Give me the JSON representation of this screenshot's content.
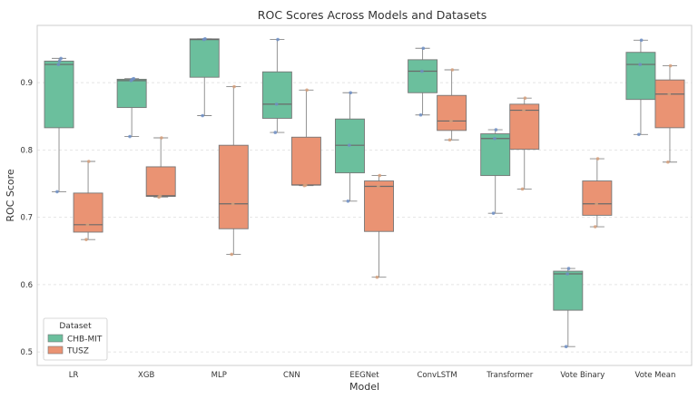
{
  "chart_data": {
    "type": "box",
    "title": "ROC Scores Across Models and Datasets",
    "xlabel": "Model",
    "ylabel": "ROC Score",
    "ylim": [
      0.48,
      0.985
    ],
    "yticks": [
      0.5,
      0.6,
      0.7,
      0.8,
      0.9
    ],
    "grid": "horizontal dashed",
    "categories": [
      "LR",
      "XGB",
      "MLP",
      "CNN",
      "EEGNet",
      "ConvLSTM",
      "Transformer",
      "Vote Binary",
      "Vote Mean"
    ],
    "legend": {
      "title": "Dataset",
      "placement": "bottom-left"
    },
    "series": [
      {
        "name": "CHB-MIT",
        "color": "#6bbf9d",
        "point_color": "#6f8fc6",
        "boxes": [
          {
            "whislo": 0.738,
            "q1": 0.833,
            "med": 0.927,
            "q3": 0.932,
            "whishi": 0.936,
            "points": [
              0.738,
              0.927,
              0.932,
              0.936
            ]
          },
          {
            "whislo": 0.82,
            "q1": 0.863,
            "med": 0.903,
            "q3": 0.905,
            "whishi": 0.906,
            "points": [
              0.82,
              0.903,
              0.905,
              0.906
            ]
          },
          {
            "whislo": 0.851,
            "q1": 0.908,
            "med": 0.964,
            "q3": 0.965,
            "whishi": 0.965,
            "points": [
              0.851,
              0.964,
              0.965
            ]
          },
          {
            "whislo": 0.826,
            "q1": 0.847,
            "med": 0.868,
            "q3": 0.916,
            "whishi": 0.964,
            "points": [
              0.826,
              0.868,
              0.964
            ]
          },
          {
            "whislo": 0.724,
            "q1": 0.766,
            "med": 0.807,
            "q3": 0.846,
            "whishi": 0.885,
            "points": [
              0.724,
              0.807,
              0.885
            ]
          },
          {
            "whislo": 0.852,
            "q1": 0.885,
            "med": 0.917,
            "q3": 0.934,
            "whishi": 0.951,
            "points": [
              0.852,
              0.917,
              0.951
            ]
          },
          {
            "whislo": 0.706,
            "q1": 0.762,
            "med": 0.817,
            "q3": 0.824,
            "whishi": 0.83,
            "points": [
              0.706,
              0.817,
              0.83
            ]
          },
          {
            "whislo": 0.508,
            "q1": 0.562,
            "med": 0.616,
            "q3": 0.62,
            "whishi": 0.624,
            "points": [
              0.508,
              0.616,
              0.624
            ]
          },
          {
            "whislo": 0.823,
            "q1": 0.875,
            "med": 0.927,
            "q3": 0.945,
            "whishi": 0.963,
            "points": [
              0.823,
              0.927,
              0.963
            ]
          }
        ]
      },
      {
        "name": "TUSZ",
        "color": "#ea9373",
        "point_color": "#d6a07c",
        "boxes": [
          {
            "whislo": 0.667,
            "q1": 0.678,
            "med": 0.689,
            "q3": 0.736,
            "whishi": 0.783,
            "points": [
              0.667,
              0.689,
              0.783
            ]
          },
          {
            "whislo": 0.73,
            "q1": 0.731,
            "med": 0.732,
            "q3": 0.775,
            "whishi": 0.818,
            "points": [
              0.73,
              0.732,
              0.818
            ]
          },
          {
            "whislo": 0.645,
            "q1": 0.683,
            "med": 0.72,
            "q3": 0.807,
            "whishi": 0.894,
            "points": [
              0.645,
              0.72,
              0.894
            ]
          },
          {
            "whislo": 0.747,
            "q1": 0.748,
            "med": 0.748,
            "q3": 0.819,
            "whishi": 0.889,
            "points": [
              0.747,
              0.748,
              0.889
            ]
          },
          {
            "whislo": 0.611,
            "q1": 0.679,
            "med": 0.746,
            "q3": 0.754,
            "whishi": 0.762,
            "points": [
              0.611,
              0.746,
              0.762
            ]
          },
          {
            "whislo": 0.815,
            "q1": 0.829,
            "med": 0.843,
            "q3": 0.881,
            "whishi": 0.919,
            "points": [
              0.815,
              0.843,
              0.919
            ]
          },
          {
            "whislo": 0.742,
            "q1": 0.801,
            "med": 0.859,
            "q3": 0.868,
            "whishi": 0.877,
            "points": [
              0.742,
              0.859,
              0.877
            ]
          },
          {
            "whislo": 0.686,
            "q1": 0.703,
            "med": 0.72,
            "q3": 0.754,
            "whishi": 0.787,
            "points": [
              0.686,
              0.72,
              0.787
            ]
          },
          {
            "whislo": 0.782,
            "q1": 0.833,
            "med": 0.883,
            "q3": 0.904,
            "whishi": 0.925,
            "points": [
              0.782,
              0.883,
              0.925
            ]
          }
        ]
      }
    ]
  }
}
